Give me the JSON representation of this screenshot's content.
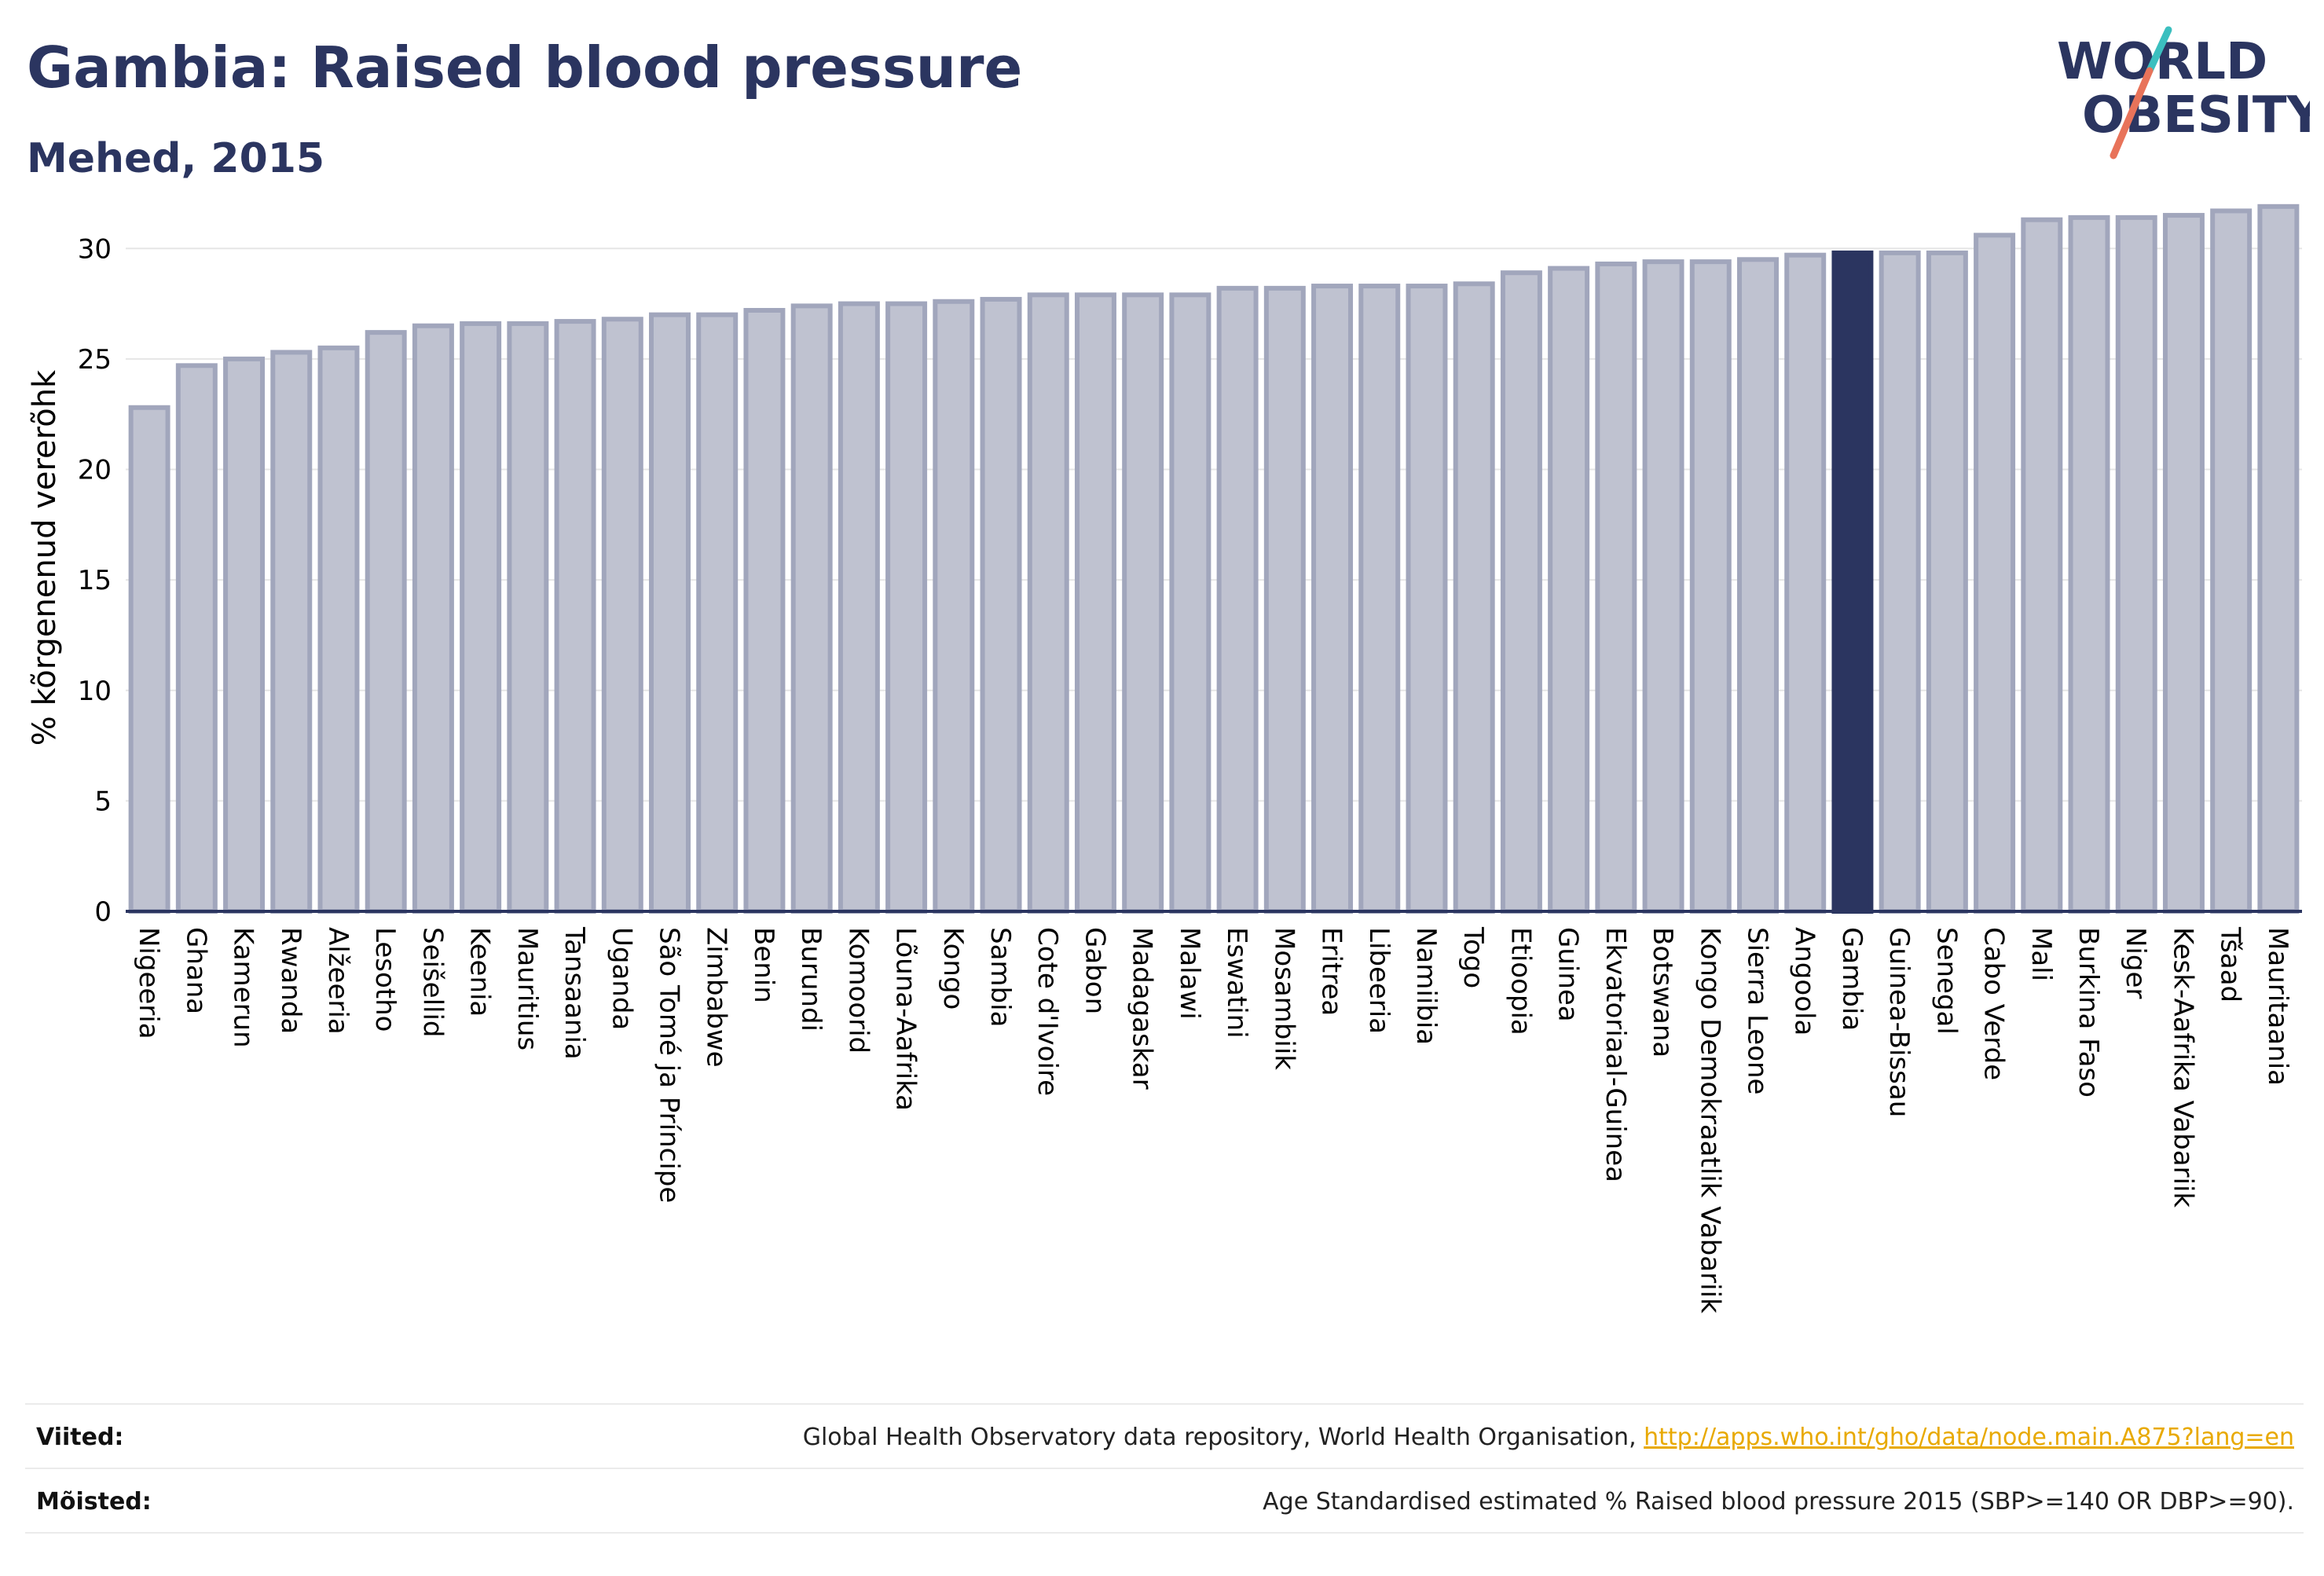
{
  "header": {
    "title": "Gambia: Raised blood pressure",
    "subtitle": "Mehed, 2015"
  },
  "logo": {
    "line1": "WORLD",
    "line2": "OBESITY",
    "text_color": "#2b3560",
    "accent_teal": "#3bbfbf",
    "accent_coral": "#e8735a"
  },
  "chart_data": {
    "type": "bar",
    "ylabel": "% kõrgenenud vererõhk",
    "ylim": [
      0,
      32
    ],
    "yticks": [
      "0",
      "5",
      "10",
      "15",
      "20",
      "25",
      "30"
    ],
    "grid": true,
    "highlight": "Gambia",
    "bar_color": "#bfc2d0",
    "bar_edge_color": "#a1a6bc",
    "highlight_color": "#2b3560",
    "categories": [
      "Nigeeria",
      "Ghana",
      "Kamerun",
      "Rwanda",
      "Alžeeria",
      "Lesotho",
      "Seišellid",
      "Keenia",
      "Mauritius",
      "Tansaania",
      "Uganda",
      "São Tomé ja Príncipe",
      "Zimbabwe",
      "Benin",
      "Burundi",
      "Komoorid",
      "Lõuna-Aafrika",
      "Kongo",
      "Sambia",
      "Cote d'Ivoire",
      "Gabon",
      "Madagaskar",
      "Malawi",
      "Eswatini",
      "Mosambiik",
      "Eritrea",
      "Libeeria",
      "Namiibia",
      "Togo",
      "Etioopia",
      "Guinea",
      "Ekvatoriaal-Guinea",
      "Botswana",
      "Kongo Demokraatlik Vabariik",
      "Sierra Leone",
      "Angoola",
      "Gambia",
      "Guinea-Bissau",
      "Senegal",
      "Cabo Verde",
      "Mali",
      "Burkina Faso",
      "Niger",
      "Kesk-Aafrika Vabariik",
      "Tšaad",
      "Mauritaania"
    ],
    "values": [
      22.8,
      24.7,
      25.0,
      25.3,
      25.5,
      26.2,
      26.5,
      26.6,
      26.6,
      26.7,
      26.8,
      27.0,
      27.0,
      27.2,
      27.4,
      27.5,
      27.5,
      27.6,
      27.7,
      27.9,
      27.9,
      27.9,
      27.9,
      28.2,
      28.2,
      28.3,
      28.3,
      28.3,
      28.4,
      28.9,
      29.1,
      29.3,
      29.4,
      29.4,
      29.5,
      29.7,
      29.8,
      29.8,
      29.8,
      30.6,
      31.3,
      31.4,
      31.4,
      31.5,
      31.7,
      31.9
    ]
  },
  "footer": {
    "references_label": "Viited:",
    "references_text": "Global Health Observatory data repository, World Health Organisation, ",
    "references_link": "http://apps.who.int/gho/data/node.main.A875?lang=en",
    "definitions_label": "Mõisted:",
    "definitions_text": "Age Standardised estimated % Raised blood pressure 2015 (SBP>=140 OR DBP>=90)."
  }
}
